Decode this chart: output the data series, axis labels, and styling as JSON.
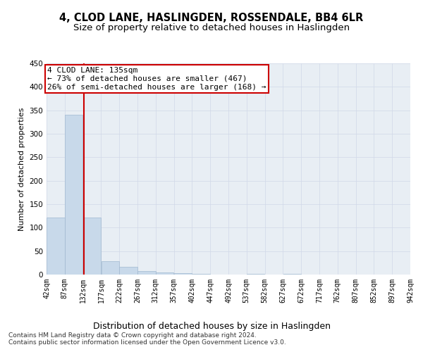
{
  "title": "4, CLOD LANE, HASLINGDEN, ROSSENDALE, BB4 6LR",
  "subtitle": "Size of property relative to detached houses in Haslingden",
  "xlabel": "Distribution of detached houses by size in Haslingden",
  "ylabel": "Number of detached properties",
  "bin_edges": [
    42,
    87,
    132,
    177,
    222,
    267,
    312,
    357,
    402,
    447,
    492,
    537,
    582,
    627,
    672,
    717,
    762,
    807,
    852,
    897,
    942
  ],
  "bar_heights": [
    122,
    340,
    122,
    28,
    17,
    8,
    5,
    3,
    1,
    0,
    0,
    1,
    0,
    1,
    0,
    0,
    0,
    0,
    0,
    0
  ],
  "bar_color": "#c8d9ea",
  "bar_edge_color": "#a0b8d0",
  "property_size": 135,
  "red_line_color": "#cc0000",
  "annotation_line1": "4 CLOD LANE: 135sqm",
  "annotation_line2": "← 73% of detached houses are smaller (467)",
  "annotation_line3": "26% of semi-detached houses are larger (168) →",
  "annotation_box_color": "#ffffff",
  "annotation_box_edge_color": "#cc0000",
  "ylim": [
    0,
    450
  ],
  "grid_color": "#d0d8e8",
  "background_color": "#e8eef4",
  "footer_line1": "Contains HM Land Registry data © Crown copyright and database right 2024.",
  "footer_line2": "Contains public sector information licensed under the Open Government Licence v3.0.",
  "title_fontsize": 10.5,
  "subtitle_fontsize": 9.5,
  "xlabel_fontsize": 9,
  "ylabel_fontsize": 8,
  "annot_fontsize": 8,
  "tick_fontsize": 7,
  "footer_fontsize": 6.5
}
